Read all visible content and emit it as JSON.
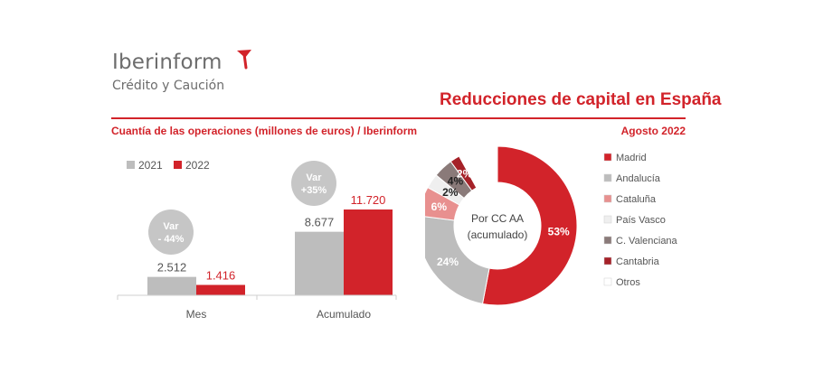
{
  "brand": {
    "name": "Iberinform",
    "tagline": "Crédito y Caución",
    "accent_color": "#d2232a"
  },
  "header": {
    "title": "Reducciones de capital en España",
    "subtitle": "Cuantía de las operaciones (millones de euros) / Iberinform",
    "date": "Agosto 2022"
  },
  "chart_data": [
    {
      "type": "bar",
      "categories": [
        "Mes",
        "Acumulado"
      ],
      "series": [
        {
          "name": "2021",
          "values": [
            2512,
            8677
          ],
          "labels": [
            "2.512",
            "8.677"
          ],
          "color": "#bdbdbd"
        },
        {
          "name": "2022",
          "values": [
            1416,
            11720
          ],
          "labels": [
            "1.416",
            "11.720"
          ],
          "color": "#d2232a"
        }
      ],
      "annotations": [
        {
          "category": "Mes",
          "lines": [
            "Var",
            "- 44%"
          ]
        },
        {
          "category": "Acumulado",
          "lines": [
            "Var",
            "+35%"
          ]
        }
      ],
      "legend_position": "top-left",
      "grid": false
    },
    {
      "type": "pie",
      "center_label": [
        "Por CC AA",
        "(acumulado)"
      ],
      "slices": [
        {
          "name": "Madrid",
          "value": 53,
          "label": "53%",
          "color": "#d2232a"
        },
        {
          "name": "Andalucía",
          "value": 24,
          "label": "24%",
          "color": "#bdbdbd"
        },
        {
          "name": "Cataluña",
          "value": 6,
          "label": "6%",
          "color": "#e8908f"
        },
        {
          "name": "País Vasco",
          "value": 3,
          "label": "",
          "color": "#efefef"
        },
        {
          "name": "C. Valenciana",
          "value": 4,
          "label": "4%",
          "color": "#8a7a79"
        },
        {
          "name": "Cantabria",
          "value": 2,
          "label": "2%",
          "color": "#a52128"
        },
        {
          "name": "Otros",
          "value": 8,
          "label": "",
          "color": "#ffffff"
        }
      ],
      "extra_labels": [
        "2%"
      ],
      "legend_position": "right"
    }
  ]
}
